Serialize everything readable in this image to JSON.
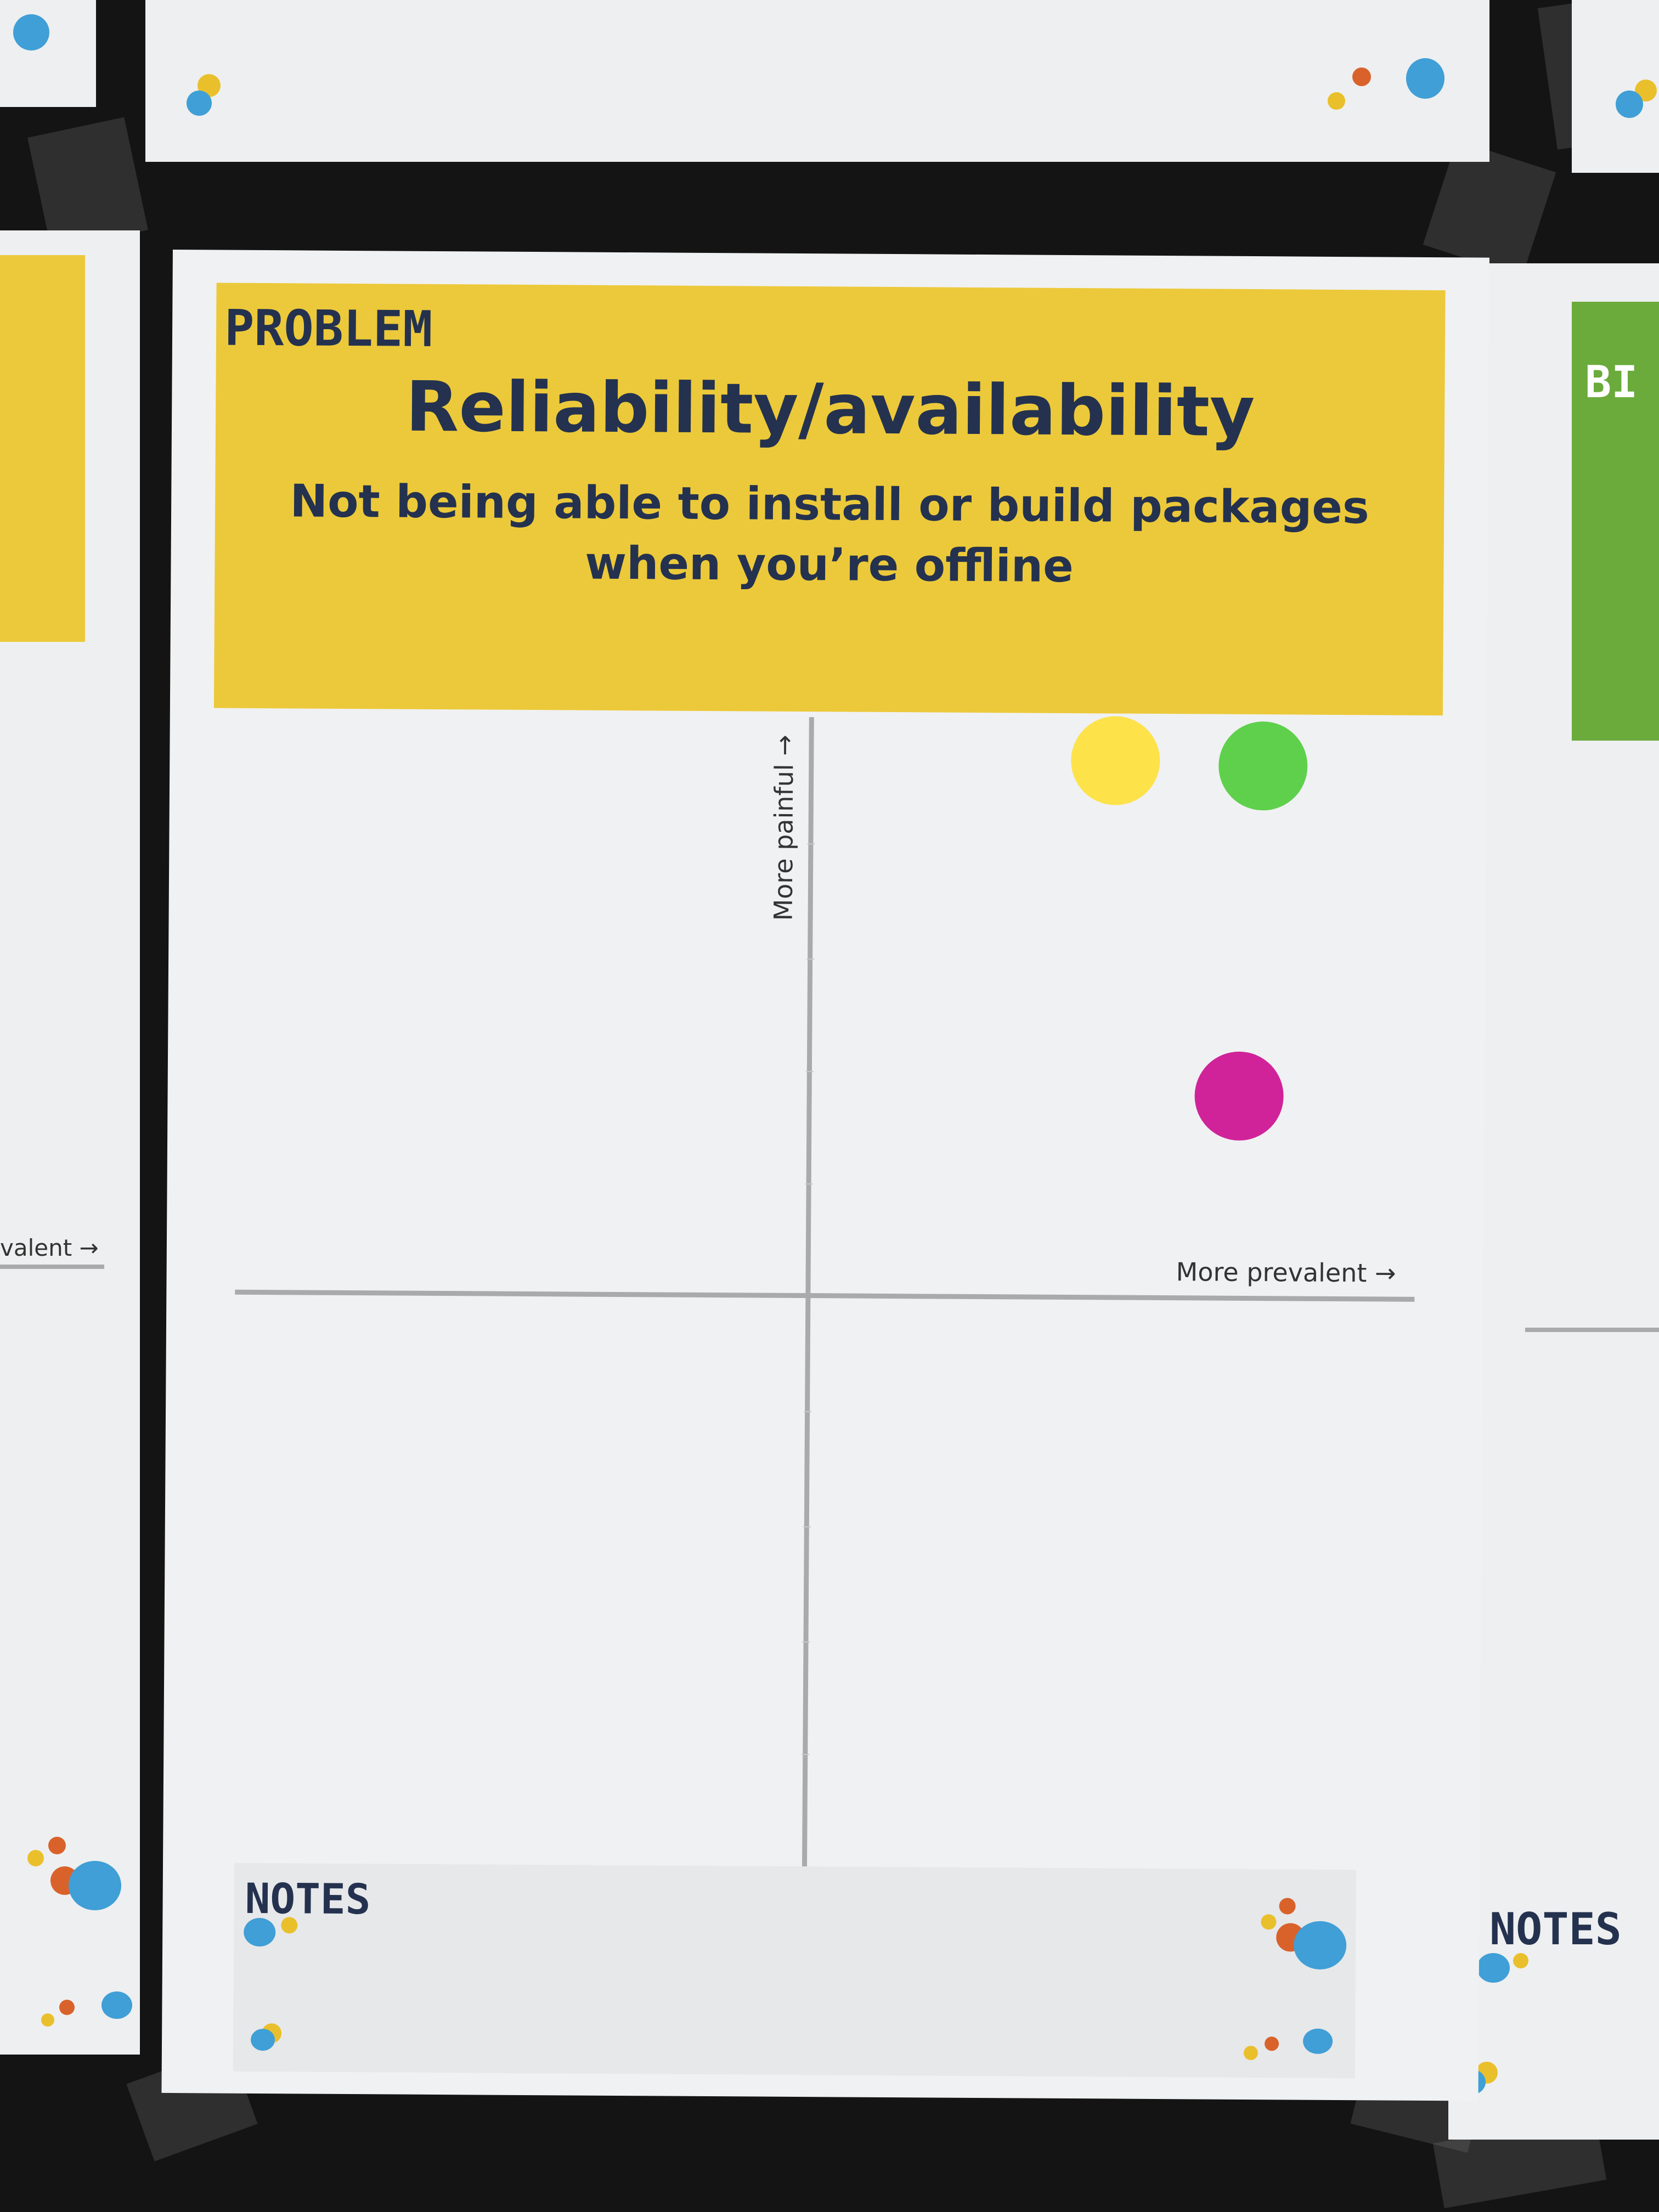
{
  "poster": {
    "header_label": "PROBLEM",
    "title": "Reliability/availability",
    "subtitle_line1": "Not being able to install or build packages",
    "subtitle_line2": "when you’re offline",
    "y_axis_label": "More painful →",
    "x_axis_label": "More prevalent →",
    "notes_label": "NOTES"
  },
  "stickers": [
    {
      "name": "yellow",
      "color": "#fde24a"
    },
    {
      "name": "green",
      "color": "#5fd04c"
    },
    {
      "name": "magenta",
      "color": "#d0239a"
    }
  ],
  "left_poster": {
    "axis_label_fragment": "valent →"
  },
  "right_poster": {
    "header_fragment": "BI",
    "notes_label": "NOTES"
  },
  "colors": {
    "header_yellow": "#ecc93a",
    "right_header_green": "#6aab3b",
    "text_navy": "#24324f"
  }
}
